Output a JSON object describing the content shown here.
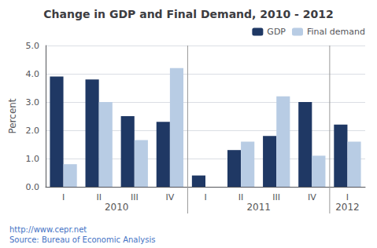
{
  "chart_data": {
    "type": "bar",
    "title": "Change in GDP and Final Demand, 2010 - 2012",
    "ylabel": "Percent",
    "categories": [
      "I",
      "II",
      "III",
      "IV",
      "I",
      "II",
      "III",
      "IV",
      "I"
    ],
    "series": [
      {
        "name": "GDP",
        "color": "#1F3864",
        "values": [
          3.9,
          3.8,
          2.5,
          2.3,
          0.4,
          1.3,
          1.8,
          3.0,
          2.2
        ]
      },
      {
        "name": "Final demand",
        "color": "#B8CCE4",
        "values": [
          0.8,
          3.0,
          1.65,
          4.2,
          0.0,
          1.6,
          3.2,
          1.1,
          1.6
        ]
      }
    ],
    "ylim": [
      0.0,
      5.0
    ],
    "yticks": [
      {
        "value": 0,
        "label": "0.0"
      },
      {
        "value": 1,
        "label": "1.0"
      },
      {
        "value": 2,
        "label": "2.0"
      },
      {
        "value": 3,
        "label": "3.0"
      },
      {
        "value": 4,
        "label": "4.0"
      },
      {
        "value": 5,
        "label": "5.0"
      }
    ],
    "grid": true,
    "legend": "upper right",
    "annotations": [
      {
        "text": "2010",
        "categories": [
          0,
          1,
          2,
          3
        ]
      },
      {
        "text": "2011",
        "categories": [
          4,
          5,
          6,
          7
        ]
      },
      {
        "text": "2012",
        "categories": [
          8
        ]
      }
    ],
    "source": "http://www.cepr.net\nSource: Bureau of Economic Analysis"
  }
}
